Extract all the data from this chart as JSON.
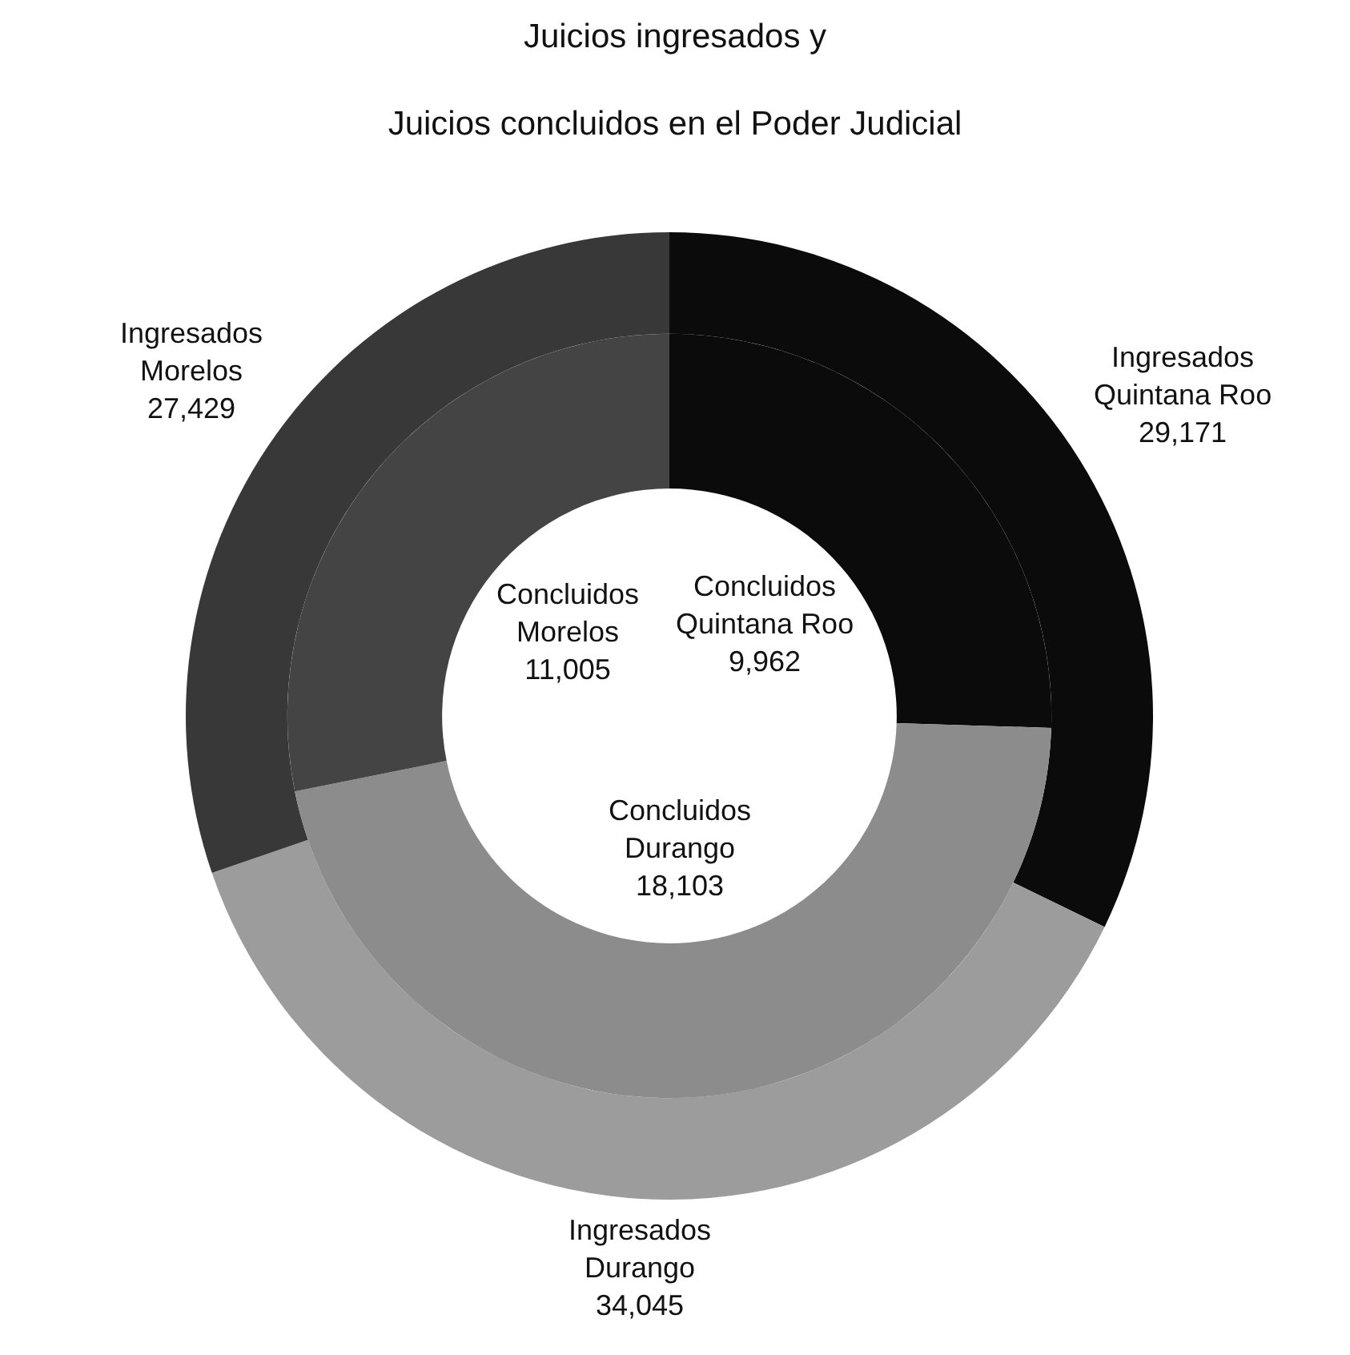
{
  "chart_data": {
    "type": "donut",
    "title": "Juicios ingresados y\nJuicios concluidos en el Poder Judicial",
    "categories": [
      "Quintana Roo",
      "Durango",
      "Morelos"
    ],
    "series": [
      {
        "name": "Ingresados",
        "values": [
          29171,
          34045,
          27429
        ],
        "value_labels": [
          "29,171",
          "34,045",
          "27,429"
        ],
        "colors": [
          "#0b0b0b",
          "#9c9c9c",
          "#383838"
        ]
      },
      {
        "name": "Concluidos",
        "values": [
          9962,
          18103,
          11005
        ],
        "value_labels": [
          "9,962",
          "18,103",
          "11,005"
        ],
        "colors": [
          "#0b0b0b",
          "#8c8c8c",
          "#444444"
        ]
      }
    ],
    "legend": false
  }
}
